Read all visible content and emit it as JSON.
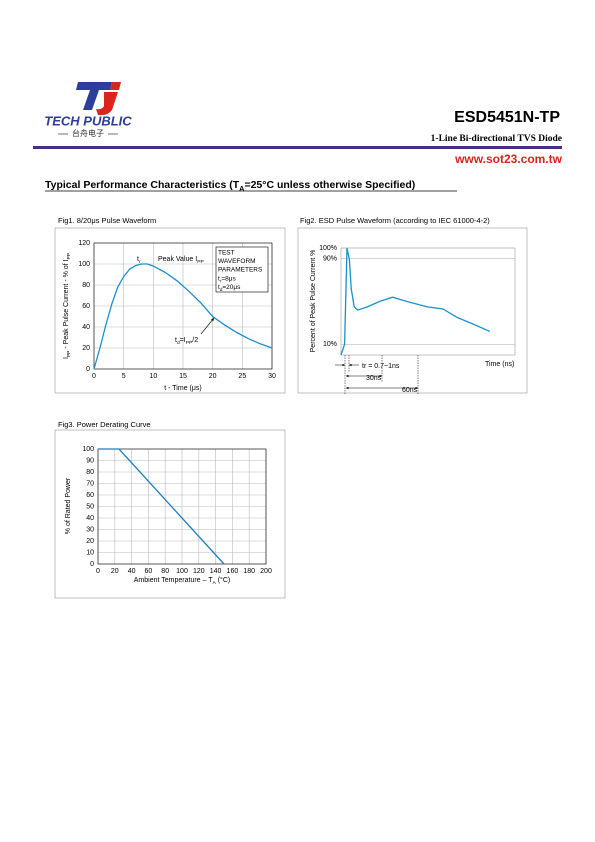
{
  "header": {
    "brand": "TECH PUBLIC",
    "brand_cn": "台舟电子",
    "part_number": "ESD5451N-TP",
    "subtitle": "1-Line Bi-directional TVS Diode",
    "website": "www.sot23.com.tw"
  },
  "heading": [
    "Typical Performance Characteristics (T",
    {
      "sub": "A"
    },
    "=25°C unless otherwise Specified)"
  ],
  "chart_data": [
    {
      "type": "line",
      "title": "Fig1.   8/20μs Pulse Waveform",
      "xlabel": "t - Time (μs)",
      "ylabel": [
        "I",
        {
          "sub": "PP"
        },
        " - Peak Pulse Current - % of I",
        {
          "sub": "PP"
        }
      ],
      "x": [
        0,
        1,
        2,
        3,
        4,
        5,
        6,
        7,
        8,
        9,
        10,
        12,
        14,
        16,
        18,
        20,
        22,
        24,
        26,
        28,
        30
      ],
      "series": [
        {
          "color": "#1a8fd0",
          "values": [
            0,
            20,
            42,
            62,
            78,
            88,
            95,
            98.5,
            100,
            100,
            98,
            92,
            84,
            74,
            63,
            50,
            42,
            35,
            29,
            24,
            20
          ]
        }
      ],
      "xlim": [
        0,
        30
      ],
      "ylim": [
        0,
        120
      ],
      "xticks": [
        0,
        5,
        10,
        15,
        20,
        25,
        30
      ],
      "yticks": [
        0,
        20,
        40,
        60,
        80,
        100,
        120
      ],
      "grid": true,
      "annotations": [
        [
          "t",
          {
            "sub": "r"
          }
        ],
        [
          "Peak Value I",
          {
            "sub": "PP"
          }
        ],
        [
          "t",
          {
            "sub": "d"
          },
          "=I",
          {
            "sub": "PP"
          },
          "/2"
        ]
      ],
      "legend_box": [
        "TEST",
        "WAVEFORM",
        "PARAMETERS",
        [
          "t",
          {
            "sub": "r"
          },
          "=8μs"
        ],
        [
          "t",
          {
            "sub": "d"
          },
          "=20μs"
        ]
      ]
    },
    {
      "type": "line",
      "title": "Fig2. ESD Pulse Waveform (according to IEC 61000-4-2)",
      "xlabel": "Time (ns)",
      "ylabel": "Percent of Peak Pulse Current %",
      "x": [
        0,
        3,
        5,
        7,
        8.5,
        11,
        14,
        22,
        32,
        43,
        55,
        72,
        85,
        97,
        110,
        124
      ],
      "series": [
        {
          "color": "#1a8fd0",
          "values": [
            0,
            10,
            100,
            89,
            62,
            45,
            42,
            45,
            50,
            54,
            50,
            45,
            43,
            35,
            29,
            22
          ]
        }
      ],
      "xlim": [
        0,
        145
      ],
      "ylim": [
        0,
        100
      ],
      "yticks": [
        {
          "value": 100,
          "label": "100%"
        },
        {
          "value": 90,
          "label": "90%"
        },
        {
          "value": 10,
          "label": "10%"
        }
      ],
      "grid": true,
      "annotations": [
        "tr = 0.7~1ns",
        "30ns",
        "60ns"
      ]
    },
    {
      "type": "line",
      "title": "Fig3.   Power Derating Curve",
      "xlabel": [
        "Ambient Temperature – T",
        {
          "sub": "A"
        },
        " (°C)"
      ],
      "ylabel": "% of Rated Power",
      "x": [
        0,
        25,
        150
      ],
      "series": [
        {
          "color": "#1f7fc0",
          "values": [
            100,
            100,
            0
          ]
        }
      ],
      "xlim": [
        0,
        200
      ],
      "ylim": [
        0,
        100
      ],
      "xticks": [
        0,
        20,
        40,
        60,
        80,
        100,
        120,
        140,
        160,
        180,
        200
      ],
      "yticks": [
        0,
        10,
        20,
        30,
        40,
        50,
        60,
        70,
        80,
        90,
        100
      ],
      "grid": true
    }
  ]
}
